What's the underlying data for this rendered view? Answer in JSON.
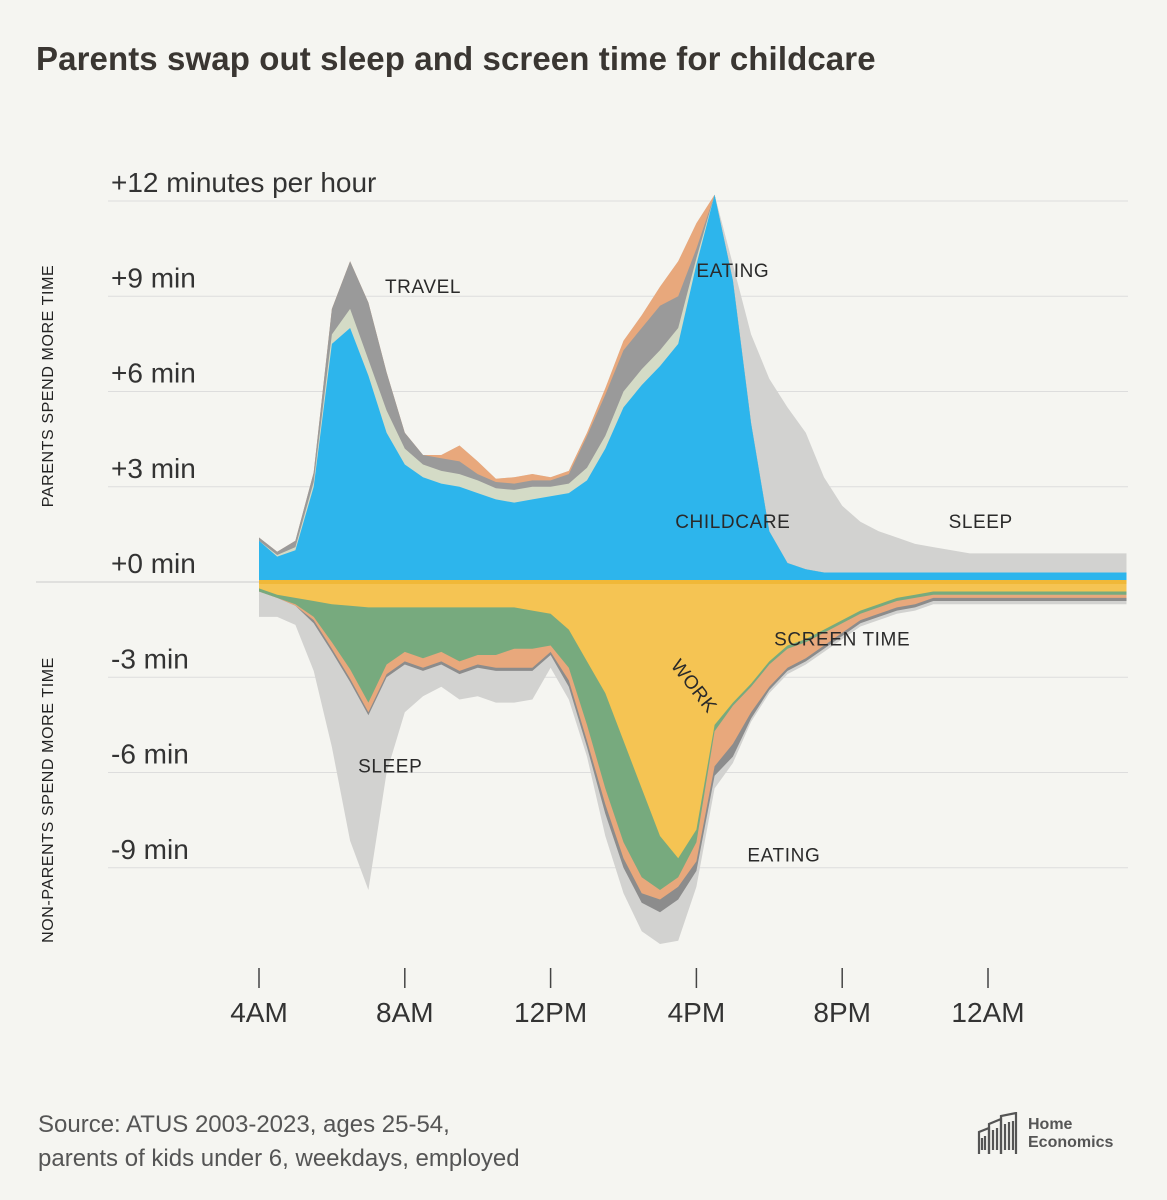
{
  "title": "Parents swap out sleep and screen time for childcare",
  "source": {
    "line1": "Source: ATUS 2003-2023, ages 25-54,",
    "line2": "parents of kids under 6, weekdays, employed"
  },
  "logo": {
    "line1": "Home",
    "line2": "Economics",
    "icon": "building-icon"
  },
  "colors": {
    "childcare": "#2db5ec",
    "screen_time": "#f5c453",
    "work": "#77aa7e",
    "eating": "#e8a87c",
    "travel": "#9a9a9a",
    "small_activity": "#d4dbc6",
    "sleep": "#d2d2d0",
    "background": "#f5f5f1",
    "grid": "#dddddd"
  },
  "chart_data": {
    "type": "area",
    "title": "Parents swap out sleep and screen time for childcare",
    "ylabel_top": "PARENTS SPEND MORE TIME",
    "ylabel_bottom": "NON-PARENTS SPEND MORE TIME",
    "ylim": [
      -12,
      12.5
    ],
    "y_ticks": [
      12,
      9,
      6,
      3,
      0,
      -3,
      -6,
      -9
    ],
    "y_tick_labels": [
      "+12 minutes per hour",
      "+9 min",
      "+6 min",
      "+3 min",
      "+0 min",
      "-3 min",
      "-6 min",
      "-9 min"
    ],
    "x_unit": "hours since 4AM",
    "xlim": [
      0,
      23.8
    ],
    "x_ticks": [
      0,
      4,
      8,
      12,
      16,
      20
    ],
    "x_tick_labels": [
      "4AM",
      "8AM",
      "12PM",
      "4PM",
      "8PM",
      "12AM"
    ],
    "x": [
      0,
      0.5,
      1,
      1.5,
      2,
      2.5,
      3,
      3.5,
      4,
      4.5,
      5,
      5.5,
      6,
      6.5,
      7,
      7.5,
      8,
      8.5,
      9,
      9.5,
      10,
      10.5,
      11,
      11.5,
      12,
      12.5,
      13,
      13.5,
      14,
      14.5,
      15,
      15.5,
      16,
      16.5,
      17,
      17.5,
      18,
      18.5,
      19,
      19.5,
      20,
      20.5,
      21,
      21.5,
      22,
      22.5,
      23,
      23.5,
      23.8
    ],
    "series_positive": [
      {
        "name": "CHILDCARE",
        "values": [
          1.3,
          0.8,
          1.0,
          3.0,
          7.5,
          8.0,
          6.5,
          4.7,
          3.7,
          3.3,
          3.1,
          3.0,
          2.8,
          2.6,
          2.5,
          2.6,
          2.7,
          2.8,
          3.2,
          4.2,
          5.5,
          6.2,
          6.8,
          7.5,
          10.0,
          12.2,
          9.5,
          5.0,
          1.6,
          0.6,
          0.4,
          0.3,
          0.3,
          0.3,
          0.3,
          0.3,
          0.3,
          0.3,
          0.3,
          0.3,
          0.3,
          0.3,
          0.3,
          0.3,
          0.3,
          0.3,
          0.3,
          0.3,
          0.3
        ]
      },
      {
        "name": "other",
        "values": [
          0.0,
          0.05,
          0.1,
          0.15,
          0.3,
          0.6,
          0.5,
          0.7,
          0.5,
          0.4,
          0.4,
          0.4,
          0.4,
          0.35,
          0.4,
          0.4,
          0.3,
          0.3,
          0.4,
          0.4,
          0.5,
          0.5,
          0.5,
          0.5,
          0.2,
          0.0,
          0,
          0,
          0,
          0,
          0,
          0,
          0,
          0,
          0,
          0,
          0,
          0,
          0,
          0,
          0,
          0,
          0,
          0,
          0,
          0,
          0,
          0,
          0
        ]
      },
      {
        "name": "TRAVEL",
        "values": [
          0.1,
          0.1,
          0.2,
          0.3,
          0.8,
          1.5,
          1.8,
          1.2,
          0.5,
          0.3,
          0.4,
          0.4,
          0.2,
          0.2,
          0.2,
          0.2,
          0.2,
          0.3,
          1.0,
          1.3,
          1.3,
          1.3,
          1.4,
          1.0,
          0.3,
          0.0,
          0,
          0,
          0,
          0,
          0,
          0,
          0,
          0,
          0,
          0,
          0,
          0,
          0,
          0,
          0,
          0,
          0,
          0,
          0,
          0,
          0,
          0,
          0
        ]
      },
      {
        "name": "EATING",
        "values": [
          0,
          0,
          0,
          0,
          0,
          0,
          0,
          0,
          0,
          0,
          0.1,
          0.5,
          0.4,
          0.1,
          0.2,
          0.2,
          0.1,
          0.1,
          0.1,
          0.2,
          0.3,
          0.4,
          0.6,
          1.1,
          0.8,
          0.0,
          0,
          0,
          0,
          0,
          0,
          0,
          0,
          0,
          0,
          0,
          0,
          0,
          0,
          0,
          0,
          0,
          0,
          0,
          0,
          0,
          0,
          0,
          0
        ]
      },
      {
        "name": "SLEEP",
        "values": [
          0,
          0,
          0,
          0,
          0,
          0,
          0,
          0,
          0,
          0,
          0,
          0,
          0,
          0,
          0,
          0,
          0,
          0,
          0,
          0,
          0,
          0,
          0,
          0,
          0,
          0,
          0.5,
          2.8,
          4.8,
          4.9,
          4.3,
          3.0,
          2.1,
          1.6,
          1.3,
          1.1,
          0.9,
          0.8,
          0.7,
          0.6,
          0.6,
          0.6,
          0.6,
          0.6,
          0.6,
          0.6,
          0.6,
          0.6,
          0.6
        ]
      }
    ],
    "series_negative": [
      {
        "name": "SCREEN TIME",
        "values": [
          -0.2,
          -0.4,
          -0.5,
          -0.6,
          -0.7,
          -0.75,
          -0.8,
          -0.8,
          -0.8,
          -0.8,
          -0.8,
          -0.8,
          -0.8,
          -0.8,
          -0.8,
          -0.9,
          -1.0,
          -1.5,
          -2.5,
          -3.5,
          -5.0,
          -6.5,
          -8.0,
          -8.7,
          -7.8,
          -4.5,
          -3.8,
          -3.2,
          -2.5,
          -2.0,
          -1.8,
          -1.5,
          -1.2,
          -0.9,
          -0.7,
          -0.5,
          -0.4,
          -0.3,
          -0.3,
          -0.3,
          -0.3,
          -0.3,
          -0.3,
          -0.3,
          -0.3,
          -0.3,
          -0.3,
          -0.3,
          -0.3
        ]
      },
      {
        "name": "WORK",
        "values": [
          -0.1,
          -0.1,
          -0.2,
          -0.5,
          -1.2,
          -2.0,
          -3.0,
          -1.8,
          -1.4,
          -1.6,
          -1.4,
          -1.7,
          -1.5,
          -1.5,
          -1.3,
          -1.2,
          -1.0,
          -1.2,
          -2.0,
          -3.0,
          -3.2,
          -2.8,
          -1.7,
          -0.6,
          -0.4,
          -0.2,
          -0.1,
          -0.1,
          -0.1,
          -0.1,
          -0.1,
          -0.1,
          -0.1,
          -0.1,
          -0.1,
          -0.1,
          -0.1,
          -0.1,
          -0.1,
          -0.1,
          -0.1,
          -0.1,
          -0.1,
          -0.1,
          -0.1,
          -0.1,
          -0.1,
          -0.1,
          -0.1
        ]
      },
      {
        "name": "EATING",
        "values": [
          0,
          0,
          -0.05,
          -0.1,
          -0.2,
          -0.3,
          -0.3,
          -0.3,
          -0.3,
          -0.3,
          -0.3,
          -0.3,
          -0.3,
          -0.4,
          -0.6,
          -0.6,
          -0.2,
          -0.4,
          -0.5,
          -0.5,
          -0.5,
          -0.5,
          -0.3,
          -0.3,
          -0.6,
          -1.1,
          -1.2,
          -0.8,
          -0.7,
          -0.6,
          -0.5,
          -0.4,
          -0.3,
          -0.2,
          -0.2,
          -0.2,
          -0.2,
          -0.1,
          -0.1,
          -0.1,
          -0.1,
          -0.1,
          -0.1,
          -0.1,
          -0.1,
          -0.1,
          -0.1,
          -0.1,
          -0.1
        ]
      },
      {
        "name": "other",
        "values": [
          0,
          0,
          0,
          -0.1,
          -0.1,
          -0.1,
          -0.1,
          -0.1,
          -0.1,
          -0.1,
          -0.1,
          -0.1,
          -0.1,
          -0.1,
          -0.1,
          -0.1,
          -0.1,
          -0.2,
          -0.2,
          -0.3,
          -0.3,
          -0.3,
          -0.4,
          -0.4,
          -0.3,
          -0.3,
          -0.4,
          -0.2,
          -0.1,
          -0.1,
          -0.1,
          -0.1,
          -0.1,
          -0.1,
          -0.1,
          -0.1,
          -0.1,
          -0.1,
          -0.1,
          -0.1,
          -0.1,
          -0.1,
          -0.1,
          -0.1,
          -0.1,
          -0.1,
          -0.1,
          -0.1,
          -0.1
        ]
      },
      {
        "name": "SLEEP",
        "values": [
          -0.8,
          -0.6,
          -0.6,
          -1.5,
          -3.0,
          -5.0,
          -5.5,
          -3.0,
          -1.5,
          -0.8,
          -0.7,
          -0.8,
          -0.9,
          -1.0,
          -1.0,
          -0.9,
          -0.4,
          -0.4,
          -0.3,
          -0.7,
          -0.8,
          -0.9,
          -1.0,
          -1.3,
          -0.5,
          -0.4,
          -0.2,
          -0.1,
          -0.1,
          -0.1,
          -0.1,
          -0.1,
          -0.1,
          -0.1,
          -0.1,
          -0.1,
          -0.1,
          -0.1,
          -0.1,
          -0.1,
          -0.1,
          -0.1,
          -0.1,
          -0.1,
          -0.1,
          -0.1,
          -0.1,
          -0.1,
          -0.1
        ]
      }
    ],
    "annotations": [
      {
        "text": "TRAVEL",
        "x": 4.5,
        "y": 9.1
      },
      {
        "text": "EATING",
        "x": 13.0,
        "y": 9.6
      },
      {
        "text": "CHILDCARE",
        "x": 13.0,
        "y": 1.7
      },
      {
        "text": "SLEEP",
        "x": 19.8,
        "y": 1.7
      },
      {
        "text": "SCREEN TIME",
        "x": 16.0,
        "y": -2.0
      },
      {
        "text": "WORK",
        "x": 11.8,
        "y": -3.4
      },
      {
        "text": "SLEEP",
        "x": 3.6,
        "y": -6.0
      },
      {
        "text": "EATING",
        "x": 14.4,
        "y": -8.8
      }
    ]
  }
}
